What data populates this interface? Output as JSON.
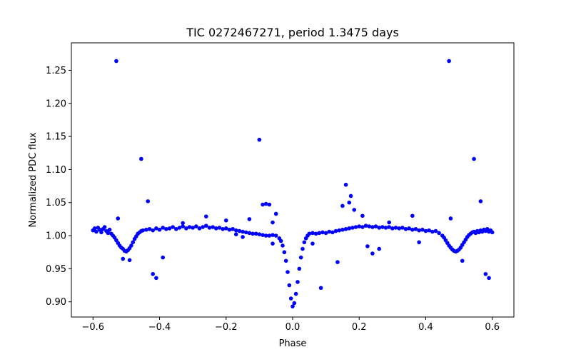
{
  "chart_data": {
    "type": "scatter",
    "title": "TIC 0272467271, period 1.3475 days",
    "xlabel": "Phase",
    "ylabel": "Normalized PDC flux",
    "xlim": [
      -0.665,
      0.665
    ],
    "ylim": [
      0.877,
      1.2915
    ],
    "xticks": [
      -0.6,
      -0.4,
      -0.2,
      0.0,
      0.2,
      0.4,
      0.6
    ],
    "xtick_labels": [
      "−0.6",
      "−0.4",
      "−0.2",
      "0.0",
      "0.2",
      "0.4",
      "0.6"
    ],
    "yticks": [
      0.9,
      0.95,
      1.0,
      1.05,
      1.1,
      1.15,
      1.2,
      1.25
    ],
    "ytick_labels": [
      "0.90",
      "0.95",
      "1.00",
      "1.05",
      "1.10",
      "1.15",
      "1.20",
      "1.25"
    ],
    "grid": false,
    "period_days": 1.3475,
    "marker_color": "#0000ff",
    "series": [
      {
        "name": "PDC flux",
        "points": [
          [
            -0.6,
            1.008
          ],
          [
            -0.595,
            1.011
          ],
          [
            -0.59,
            1.006
          ],
          [
            -0.585,
            1.012
          ],
          [
            -0.58,
            1.009
          ],
          [
            -0.575,
            1.005
          ],
          [
            -0.57,
            1.01
          ],
          [
            -0.565,
            1.013
          ],
          [
            -0.56,
            1.007
          ],
          [
            -0.555,
            1.004
          ],
          [
            -0.55,
            1.009
          ],
          [
            -0.545,
            1.003
          ],
          [
            -0.54,
            1.0
          ],
          [
            -0.535,
            0.997
          ],
          [
            -0.53,
            0.993
          ],
          [
            -0.525,
            0.989
          ],
          [
            -0.52,
            0.985
          ],
          [
            -0.515,
            0.982
          ],
          [
            -0.51,
            0.98
          ],
          [
            -0.505,
            0.977
          ],
          [
            -0.5,
            0.976
          ],
          [
            -0.495,
            0.978
          ],
          [
            -0.49,
            0.981
          ],
          [
            -0.485,
            0.985
          ],
          [
            -0.48,
            0.99
          ],
          [
            -0.475,
            0.995
          ],
          [
            -0.47,
            0.999
          ],
          [
            -0.465,
            1.003
          ],
          [
            -0.46,
            1.005
          ],
          [
            -0.455,
            1.007
          ],
          [
            -0.45,
            1.008
          ],
          [
            -0.44,
            1.009
          ],
          [
            -0.43,
            1.01
          ],
          [
            -0.42,
            1.008
          ],
          [
            -0.41,
            1.011
          ],
          [
            -0.4,
            1.009
          ],
          [
            -0.39,
            1.012
          ],
          [
            -0.38,
            1.01
          ],
          [
            -0.37,
            1.011
          ],
          [
            -0.36,
            1.013
          ],
          [
            -0.35,
            1.01
          ],
          [
            -0.34,
            1.012
          ],
          [
            -0.33,
            1.014
          ],
          [
            -0.32,
            1.011
          ],
          [
            -0.31,
            1.013
          ],
          [
            -0.3,
            1.012
          ],
          [
            -0.29,
            1.014
          ],
          [
            -0.28,
            1.011
          ],
          [
            -0.27,
            1.013
          ],
          [
            -0.26,
            1.015
          ],
          [
            -0.25,
            1.012
          ],
          [
            -0.24,
            1.013
          ],
          [
            -0.23,
            1.011
          ],
          [
            -0.22,
            1.012
          ],
          [
            -0.21,
            1.01
          ],
          [
            -0.2,
            1.011
          ],
          [
            -0.19,
            1.009
          ],
          [
            -0.18,
            1.01
          ],
          [
            -0.17,
            1.008
          ],
          [
            -0.16,
            1.007
          ],
          [
            -0.15,
            1.006
          ],
          [
            -0.14,
            1.005
          ],
          [
            -0.13,
            1.004
          ],
          [
            -0.12,
            1.003
          ],
          [
            -0.11,
            1.003
          ],
          [
            -0.1,
            1.002
          ],
          [
            -0.09,
            1.001
          ],
          [
            -0.08,
            1.0
          ],
          [
            -0.07,
            1.0
          ],
          [
            -0.06,
            1.001
          ],
          [
            -0.05,
            1.0
          ],
          [
            -0.04,
            0.996
          ],
          [
            -0.035,
            0.992
          ],
          [
            -0.03,
            0.985
          ],
          [
            -0.025,
            0.975
          ],
          [
            -0.02,
            0.962
          ],
          [
            -0.015,
            0.945
          ],
          [
            -0.01,
            0.925
          ],
          [
            -0.005,
            0.905
          ],
          [
            0.0,
            0.893
          ],
          [
            0.005,
            0.898
          ],
          [
            0.01,
            0.912
          ],
          [
            0.015,
            0.93
          ],
          [
            0.02,
            0.95
          ],
          [
            0.025,
            0.967
          ],
          [
            0.03,
            0.98
          ],
          [
            0.035,
            0.99
          ],
          [
            0.04,
            0.996
          ],
          [
            0.045,
            1.0
          ],
          [
            0.05,
            1.003
          ],
          [
            0.06,
            1.004
          ],
          [
            0.07,
            1.003
          ],
          [
            0.08,
            1.004
          ],
          [
            0.09,
            1.005
          ],
          [
            0.1,
            1.004
          ],
          [
            0.11,
            1.006
          ],
          [
            0.12,
            1.005
          ],
          [
            0.13,
            1.007
          ],
          [
            0.14,
            1.008
          ],
          [
            0.15,
            1.009
          ],
          [
            0.16,
            1.01
          ],
          [
            0.17,
            1.011
          ],
          [
            0.18,
            1.012
          ],
          [
            0.19,
            1.013
          ],
          [
            0.2,
            1.014
          ],
          [
            0.21,
            1.013
          ],
          [
            0.22,
            1.015
          ],
          [
            0.23,
            1.014
          ],
          [
            0.24,
            1.013
          ],
          [
            0.25,
            1.014
          ],
          [
            0.26,
            1.012
          ],
          [
            0.27,
            1.013
          ],
          [
            0.28,
            1.012
          ],
          [
            0.29,
            1.013
          ],
          [
            0.3,
            1.011
          ],
          [
            0.31,
            1.012
          ],
          [
            0.32,
            1.011
          ],
          [
            0.33,
            1.012
          ],
          [
            0.34,
            1.01
          ],
          [
            0.35,
            1.011
          ],
          [
            0.36,
            1.009
          ],
          [
            0.37,
            1.01
          ],
          [
            0.38,
            1.008
          ],
          [
            0.39,
            1.009
          ],
          [
            0.4,
            1.007
          ],
          [
            0.41,
            1.008
          ],
          [
            0.42,
            1.006
          ],
          [
            0.43,
            1.007
          ],
          [
            0.44,
            1.004
          ],
          [
            0.45,
            1.0
          ],
          [
            0.455,
            0.997
          ],
          [
            0.46,
            0.993
          ],
          [
            0.465,
            0.989
          ],
          [
            0.47,
            0.985
          ],
          [
            0.475,
            0.982
          ],
          [
            0.48,
            0.979
          ],
          [
            0.485,
            0.977
          ],
          [
            0.49,
            0.976
          ],
          [
            0.495,
            0.977
          ],
          [
            0.5,
            0.979
          ],
          [
            0.505,
            0.982
          ],
          [
            0.51,
            0.986
          ],
          [
            0.515,
            0.99
          ],
          [
            0.52,
            0.994
          ],
          [
            0.525,
            0.998
          ],
          [
            0.53,
            1.001
          ],
          [
            0.535,
            1.003
          ],
          [
            0.54,
            1.005
          ],
          [
            0.545,
            1.006
          ],
          [
            0.55,
            1.004
          ],
          [
            0.555,
            1.007
          ],
          [
            0.56,
            1.005
          ],
          [
            0.565,
            1.008
          ],
          [
            0.57,
            1.006
          ],
          [
            0.575,
            1.009
          ],
          [
            0.58,
            1.007
          ],
          [
            0.585,
            1.01
          ],
          [
            0.59,
            1.006
          ],
          [
            0.595,
            1.008
          ],
          [
            0.6,
            1.005
          ],
          [
            -0.53,
            1.264
          ],
          [
            0.47,
            1.264
          ],
          [
            -0.525,
            1.026
          ],
          [
            0.475,
            1.026
          ],
          [
            -0.455,
            1.116
          ],
          [
            0.545,
            1.116
          ],
          [
            -0.435,
            1.052
          ],
          [
            0.565,
            1.052
          ],
          [
            -0.42,
            0.942
          ],
          [
            0.58,
            0.942
          ],
          [
            -0.41,
            0.936
          ],
          [
            0.59,
            0.936
          ],
          [
            -0.39,
            0.967
          ],
          [
            -0.51,
            0.965
          ],
          [
            -0.49,
            0.963
          ],
          [
            0.51,
            0.962
          ],
          [
            -0.1,
            1.145
          ],
          [
            -0.09,
            1.047
          ],
          [
            -0.08,
            1.048
          ],
          [
            -0.07,
            1.047
          ],
          [
            -0.06,
            1.02
          ],
          [
            -0.05,
            1.033
          ],
          [
            -0.13,
            1.025
          ],
          [
            0.085,
            0.921
          ],
          [
            0.135,
            0.96
          ],
          [
            0.16,
            1.077
          ],
          [
            0.175,
            1.06
          ],
          [
            0.17,
            1.05
          ],
          [
            0.15,
            1.045
          ],
          [
            0.185,
            1.039
          ],
          [
            0.21,
            1.03
          ],
          [
            0.225,
            0.984
          ],
          [
            0.24,
            0.973
          ],
          [
            0.26,
            0.98
          ],
          [
            0.38,
            0.99
          ],
          [
            0.36,
            1.03
          ],
          [
            -0.26,
            1.029
          ],
          [
            -0.2,
            1.023
          ],
          [
            -0.17,
            1.002
          ],
          [
            -0.15,
            0.998
          ],
          [
            -0.06,
            0.988
          ],
          [
            0.29,
            1.02
          ],
          [
            -0.33,
            1.019
          ],
          [
            0.06,
            0.988
          ]
        ]
      }
    ]
  }
}
